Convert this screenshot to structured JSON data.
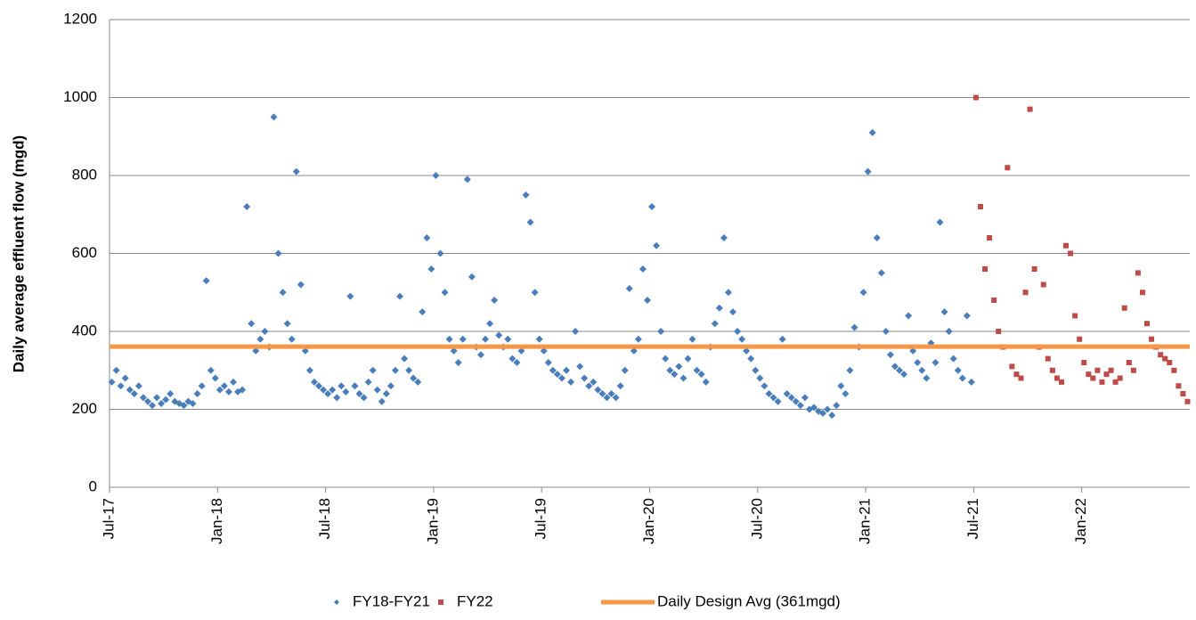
{
  "chart_data": {
    "type": "scatter",
    "y_label": "Daily average effluent flow (mgd)",
    "ylim": [
      0,
      1200
    ],
    "yticks": [
      0,
      200,
      400,
      600,
      800,
      1000,
      1200
    ],
    "grid": true,
    "xlim": [
      "2017-07",
      "2022-07"
    ],
    "xticks": [
      {
        "value": "2017-07",
        "label": "Jul-17"
      },
      {
        "value": "2018-01",
        "label": "Jan-18"
      },
      {
        "value": "2018-07",
        "label": "Jul-18"
      },
      {
        "value": "2019-01",
        "label": "Jan-19"
      },
      {
        "value": "2019-07",
        "label": "Jul-19"
      },
      {
        "value": "2020-01",
        "label": "Jan-20"
      },
      {
        "value": "2020-07",
        "label": "Jul-20"
      },
      {
        "value": "2021-01",
        "label": "Jan-21"
      },
      {
        "value": "2021-07",
        "label": "Jul-21"
      },
      {
        "value": "2022-01",
        "label": "Jan-22"
      }
    ],
    "legend": "bottom",
    "series": [
      {
        "name": "FY18-FY21",
        "type": "scatter",
        "marker": "diamond",
        "color": "#4a7ebb",
        "x": [
          "2017-07",
          "2017-07",
          "2017-07",
          "2017-07",
          "2017-08",
          "2017-08",
          "2017-08",
          "2017-08",
          "2017-09",
          "2017-09",
          "2017-09",
          "2017-09",
          "2017-10",
          "2017-10",
          "2017-10",
          "2017-10",
          "2017-11",
          "2017-11",
          "2017-11",
          "2017-11",
          "2017-12",
          "2017-12",
          "2017-12",
          "2017-12",
          "2018-01",
          "2018-01",
          "2018-01",
          "2018-01",
          "2018-02",
          "2018-02",
          "2018-02",
          "2018-02",
          "2018-03",
          "2018-03",
          "2018-03",
          "2018-03",
          "2018-04",
          "2018-04",
          "2018-04",
          "2018-04",
          "2018-05",
          "2018-05",
          "2018-05",
          "2018-05",
          "2018-06",
          "2018-06",
          "2018-06",
          "2018-06",
          "2018-07",
          "2018-07",
          "2018-07",
          "2018-07",
          "2018-08",
          "2018-08",
          "2018-08",
          "2018-08",
          "2018-09",
          "2018-09",
          "2018-09",
          "2018-09",
          "2018-10",
          "2018-10",
          "2018-10",
          "2018-10",
          "2018-11",
          "2018-11",
          "2018-11",
          "2018-11",
          "2018-12",
          "2018-12",
          "2018-12",
          "2018-12",
          "2019-01",
          "2019-01",
          "2019-01",
          "2019-01",
          "2019-02",
          "2019-02",
          "2019-02",
          "2019-02",
          "2019-03",
          "2019-03",
          "2019-03",
          "2019-03",
          "2019-04",
          "2019-04",
          "2019-04",
          "2019-04",
          "2019-05",
          "2019-05",
          "2019-05",
          "2019-05",
          "2019-06",
          "2019-06",
          "2019-06",
          "2019-06",
          "2019-07",
          "2019-07",
          "2019-07",
          "2019-07",
          "2019-08",
          "2019-08",
          "2019-08",
          "2019-08",
          "2019-09",
          "2019-09",
          "2019-09",
          "2019-09",
          "2019-10",
          "2019-10",
          "2019-10",
          "2019-10",
          "2019-11",
          "2019-11",
          "2019-11",
          "2019-11",
          "2019-12",
          "2019-12",
          "2019-12",
          "2019-12",
          "2020-01",
          "2020-01",
          "2020-01",
          "2020-01",
          "2020-02",
          "2020-02",
          "2020-02",
          "2020-02",
          "2020-03",
          "2020-03",
          "2020-03",
          "2020-03",
          "2020-04",
          "2020-04",
          "2020-04",
          "2020-04",
          "2020-05",
          "2020-05",
          "2020-05",
          "2020-05",
          "2020-06",
          "2020-06",
          "2020-06",
          "2020-06",
          "2020-07",
          "2020-07",
          "2020-07",
          "2020-07",
          "2020-08",
          "2020-08",
          "2020-08",
          "2020-08",
          "2020-09",
          "2020-09",
          "2020-09",
          "2020-09",
          "2020-10",
          "2020-10",
          "2020-10",
          "2020-10",
          "2020-11",
          "2020-11",
          "2020-11",
          "2020-11",
          "2020-12",
          "2020-12",
          "2020-12",
          "2020-12",
          "2021-01",
          "2021-01",
          "2021-01",
          "2021-01",
          "2021-02",
          "2021-02",
          "2021-02",
          "2021-02",
          "2021-03",
          "2021-03",
          "2021-03",
          "2021-03",
          "2021-04",
          "2021-04",
          "2021-04",
          "2021-04",
          "2021-05",
          "2021-05",
          "2021-05",
          "2021-05",
          "2021-06",
          "2021-06",
          "2021-06",
          "2021-06"
        ],
        "values": [
          270,
          300,
          260,
          280,
          250,
          240,
          260,
          230,
          220,
          210,
          230,
          215,
          225,
          240,
          220,
          215,
          210,
          220,
          215,
          240,
          260,
          530,
          300,
          280,
          250,
          260,
          245,
          270,
          245,
          250,
          720,
          420,
          350,
          380,
          400,
          360,
          950,
          600,
          500,
          420,
          380,
          810,
          520,
          350,
          300,
          270,
          260,
          250,
          240,
          250,
          230,
          260,
          245,
          490,
          260,
          240,
          230,
          270,
          300,
          250,
          220,
          240,
          260,
          300,
          490,
          330,
          300,
          280,
          270,
          450,
          640,
          560,
          800,
          600,
          500,
          380,
          350,
          320,
          380,
          790,
          540,
          360,
          340,
          380,
          420,
          480,
          390,
          360,
          380,
          330,
          320,
          350,
          750,
          680,
          500,
          380,
          350,
          320,
          300,
          290,
          280,
          300,
          270,
          400,
          310,
          280,
          260,
          270,
          250,
          240,
          230,
          240,
          230,
          260,
          300,
          510,
          350,
          380,
          560,
          480,
          720,
          620,
          400,
          330,
          300,
          290,
          310,
          280,
          330,
          380,
          300,
          290,
          270,
          360,
          420,
          460,
          640,
          500,
          450,
          400,
          380,
          350,
          330,
          300,
          280,
          260,
          240,
          230,
          220,
          380,
          240,
          230,
          220,
          210,
          230,
          200,
          205,
          195,
          190,
          200,
          185,
          210,
          260,
          240,
          300,
          410,
          360,
          500,
          810,
          910,
          640,
          550,
          400,
          340,
          310,
          300,
          290,
          440,
          350,
          320,
          300,
          280,
          370,
          320,
          680,
          450,
          400,
          330,
          300,
          280,
          440,
          270
        ]
      },
      {
        "name": "FY22",
        "type": "scatter",
        "marker": "square",
        "color": "#be4b48",
        "x": [
          "2021-07",
          "2021-07",
          "2021-07",
          "2021-07",
          "2021-08",
          "2021-08",
          "2021-08",
          "2021-08",
          "2021-09",
          "2021-09",
          "2021-09",
          "2021-09",
          "2021-10",
          "2021-10",
          "2021-10",
          "2021-10",
          "2021-11",
          "2021-11",
          "2021-11",
          "2021-11",
          "2021-12",
          "2021-12",
          "2021-12",
          "2021-12",
          "2022-01",
          "2022-01",
          "2022-01",
          "2022-01",
          "2022-02",
          "2022-02",
          "2022-02",
          "2022-02",
          "2022-03",
          "2022-03",
          "2022-03",
          "2022-03",
          "2022-04",
          "2022-04",
          "2022-04",
          "2022-04",
          "2022-05",
          "2022-05",
          "2022-05",
          "2022-05",
          "2022-06",
          "2022-06",
          "2022-06",
          "2022-06"
        ],
        "values": [
          1000,
          720,
          560,
          640,
          480,
          400,
          360,
          820,
          310,
          290,
          280,
          500,
          970,
          560,
          360,
          520,
          330,
          300,
          280,
          270,
          620,
          600,
          440,
          380,
          320,
          290,
          280,
          300,
          270,
          290,
          300,
          270,
          280,
          460,
          320,
          300,
          550,
          500,
          420,
          380,
          360,
          340,
          330,
          320,
          300,
          260,
          240,
          220
        ]
      },
      {
        "name": "Daily Design Avg (361mgd)",
        "type": "line",
        "color": "#f79646",
        "x": [
          "2017-07",
          "2022-07"
        ],
        "values": [
          361,
          361
        ]
      }
    ]
  }
}
